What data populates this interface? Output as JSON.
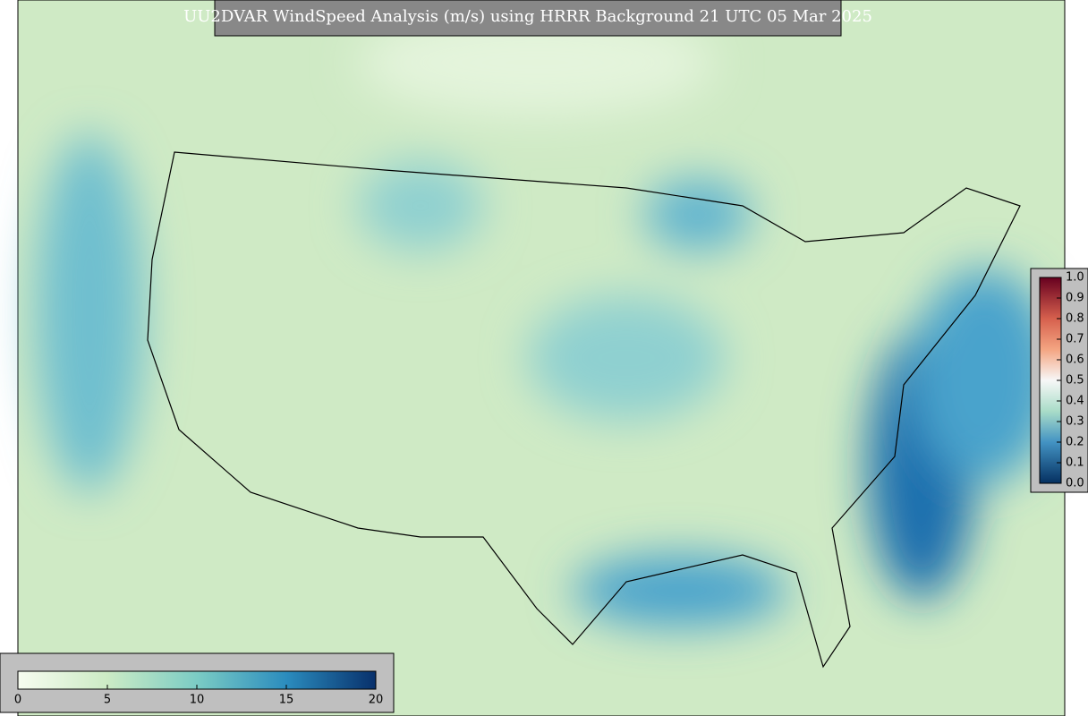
{
  "title": "UU2DVAR WindSpeed Analysis (m/s) using HRRR Background 21 UTC 05 Mar 2025",
  "wind_colorbar": {
    "lim": [
      0,
      20
    ],
    "ticks": [
      0,
      5,
      10,
      15,
      20
    ]
  },
  "ratio_colorbar": {
    "lim": [
      0,
      1
    ],
    "ticks": [
      {
        "value": 0,
        "label": "0.0"
      },
      0.1,
      0.2,
      0.3,
      0.4,
      0.5,
      0.6,
      0.7,
      0.8,
      0.9,
      {
        "value": 1,
        "label": "1.0"
      }
    ]
  }
}
